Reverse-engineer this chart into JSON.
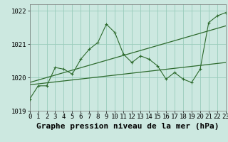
{
  "title": "Graphe pression niveau de la mer (hPa)",
  "bg_color": "#cce8e0",
  "grid_color": "#99ccbb",
  "line_color": "#2d6a2d",
  "x_min": 0,
  "x_max": 23,
  "y_min": 1019.0,
  "y_max": 1022.2,
  "yticks": [
    1019,
    1020,
    1021,
    1022
  ],
  "xticks": [
    0,
    1,
    2,
    3,
    4,
    5,
    6,
    7,
    8,
    9,
    10,
    11,
    12,
    13,
    14,
    15,
    16,
    17,
    18,
    19,
    20,
    21,
    22,
    23
  ],
  "series1_x": [
    0,
    1,
    2,
    3,
    4,
    5,
    6,
    7,
    8,
    9,
    10,
    11,
    12,
    13,
    14,
    15,
    16,
    17,
    18,
    19,
    20,
    21,
    22,
    23
  ],
  "series1_y": [
    1019.35,
    1019.75,
    1019.75,
    1020.3,
    1020.25,
    1020.1,
    1020.55,
    1020.85,
    1021.05,
    1021.6,
    1021.35,
    1020.7,
    1020.45,
    1020.65,
    1020.55,
    1020.35,
    1019.95,
    1020.15,
    1019.95,
    1019.85,
    1020.25,
    1021.65,
    1021.85,
    1021.95
  ],
  "trend1_x": [
    0,
    23
  ],
  "trend1_y": [
    1019.85,
    1021.55
  ],
  "trend2_x": [
    0,
    23
  ],
  "trend2_y": [
    1019.78,
    1020.45
  ],
  "title_fontsize": 8,
  "tick_fontsize": 6.5
}
